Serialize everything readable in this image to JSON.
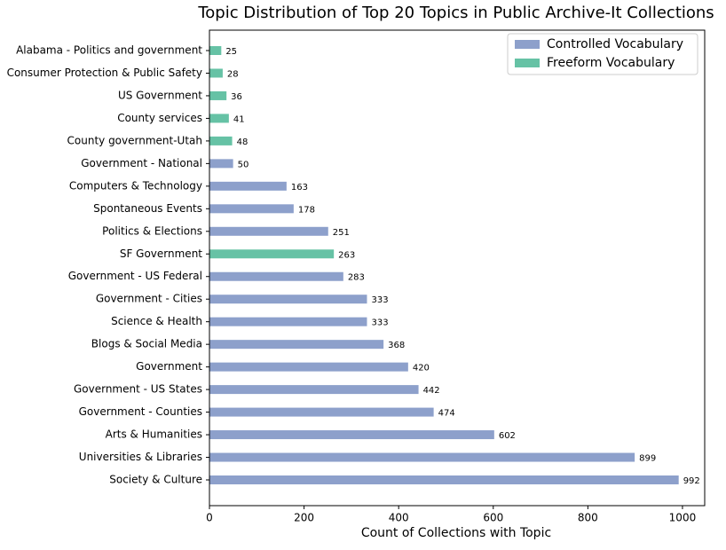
{
  "chart_data": {
    "type": "barh",
    "title": "Topic Distribution of Top 20 Topics in Public Archive-It Collections",
    "x_label": "Count of Collections with Topic",
    "categories": [
      "Alabama - Politics and government",
      "Consumer Protection & Public Safety",
      "US Government",
      "County services",
      "County government-Utah",
      "Government - National",
      "Computers & Technology",
      "Spontaneous Events",
      "Politics & Elections",
      "SF Government",
      "Government - US Federal",
      "Government - Cities",
      "Science & Health",
      "Blogs & Social Media",
      "Government",
      "Government - US States",
      "Government - Counties",
      "Arts & Humanities",
      "Universities & Libraries",
      "Society & Culture"
    ],
    "series": [
      {
        "name": "Controlled Vocabulary",
        "color": "#8da0cb",
        "values": [
          null,
          null,
          null,
          null,
          null,
          50,
          163,
          178,
          251,
          null,
          283,
          333,
          333,
          368,
          420,
          442,
          474,
          602,
          899,
          992
        ]
      },
      {
        "name": "Freeform Vocabulary",
        "color": "#66c2a5",
        "values": [
          25,
          28,
          36,
          41,
          48,
          null,
          null,
          null,
          null,
          263,
          null,
          null,
          null,
          null,
          null,
          null,
          null,
          null,
          null,
          null
        ]
      }
    ],
    "xlim": [
      0,
      1047
    ],
    "xticks": [
      0,
      200,
      400,
      600,
      800,
      1000
    ],
    "legend": "upper right"
  }
}
